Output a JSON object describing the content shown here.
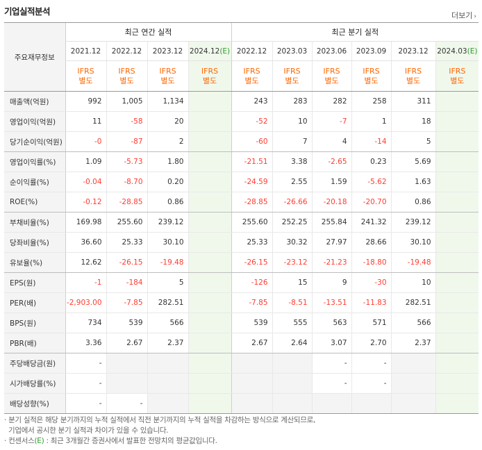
{
  "header": {
    "title": "기업실적분석",
    "more_label": "더보기",
    "more_arrow": "›"
  },
  "table": {
    "label_header": "주요재무정보",
    "group_annual": "최근 연간 실적",
    "group_quarter": "최근 분기 실적",
    "periods": [
      "2021.12",
      "2022.12",
      "2023.12",
      "2024.12",
      "2022.12",
      "2023.03",
      "2023.06",
      "2023.09",
      "2023.12",
      "2024.03"
    ],
    "estimate_suffix": "(E)",
    "ifrs_line1": "IFRS",
    "ifrs_line2": "별도",
    "rows": [
      {
        "label": "매출액(억원)",
        "values": [
          "992",
          "1,005",
          "1,134",
          "",
          "243",
          "283",
          "282",
          "258",
          "311",
          ""
        ]
      },
      {
        "label": "영업이익(억원)",
        "values": [
          "11",
          "-58",
          "20",
          "",
          "-52",
          "10",
          "-7",
          "1",
          "18",
          ""
        ]
      },
      {
        "label": "당기순이익(억원)",
        "values": [
          "-0",
          "-87",
          "2",
          "",
          "-60",
          "7",
          "4",
          "-14",
          "5",
          ""
        ]
      },
      {
        "label": "영업이익률(%)",
        "values": [
          "1.09",
          "-5.73",
          "1.80",
          "",
          "-21.51",
          "3.38",
          "-2.65",
          "0.23",
          "5.69",
          ""
        ]
      },
      {
        "label": "순이익률(%)",
        "values": [
          "-0.04",
          "-8.70",
          "0.20",
          "",
          "-24.59",
          "2.55",
          "1.59",
          "-5.62",
          "1.63",
          ""
        ]
      },
      {
        "label": "ROE(%)",
        "values": [
          "-0.12",
          "-28.85",
          "0.86",
          "",
          "-28.85",
          "-26.66",
          "-20.18",
          "-20.70",
          "0.86",
          ""
        ]
      },
      {
        "label": "부채비율(%)",
        "values": [
          "169.98",
          "255.60",
          "239.12",
          "",
          "255.60",
          "252.25",
          "255.84",
          "241.32",
          "239.12",
          ""
        ]
      },
      {
        "label": "당좌비율(%)",
        "values": [
          "36.60",
          "25.33",
          "30.10",
          "",
          "25.33",
          "30.32",
          "27.97",
          "28.66",
          "30.10",
          ""
        ]
      },
      {
        "label": "유보율(%)",
        "values": [
          "12.62",
          "-26.15",
          "-19.48",
          "",
          "-26.15",
          "-23.12",
          "-21.23",
          "-18.80",
          "-19.48",
          ""
        ]
      },
      {
        "label": "EPS(원)",
        "values": [
          "-1",
          "-184",
          "5",
          "",
          "-126",
          "15",
          "9",
          "-30",
          "10",
          ""
        ]
      },
      {
        "label": "PER(배)",
        "values": [
          "-2,903.00",
          "-7.85",
          "282.51",
          "",
          "-7.85",
          "-8.51",
          "-13.51",
          "-11.83",
          "282.51",
          ""
        ]
      },
      {
        "label": "BPS(원)",
        "values": [
          "734",
          "539",
          "566",
          "",
          "539",
          "555",
          "563",
          "571",
          "566",
          ""
        ]
      },
      {
        "label": "PBR(배)",
        "values": [
          "3.36",
          "2.67",
          "2.37",
          "",
          "2.67",
          "2.64",
          "3.07",
          "2.70",
          "2.37",
          ""
        ]
      },
      {
        "label": "주당배당금(원)",
        "values": [
          "-",
          "",
          "",
          "",
          "",
          "",
          "-",
          "-",
          "",
          ""
        ]
      },
      {
        "label": "시가배당률(%)",
        "values": [
          "-",
          "",
          "",
          "",
          "",
          "",
          "-",
          "-",
          "",
          ""
        ]
      },
      {
        "label": "배당성향(%)",
        "values": [
          "-",
          "-",
          "",
          "",
          "",
          "",
          "",
          "",
          "",
          ""
        ]
      }
    ]
  },
  "notes": {
    "line1": "· 분기 실적은 해당 분기까지의 누적 실적에서 직전 분기까지의 누적 실적을 차감하는 방식으로 계산되므로,",
    "line2": "  기업에서 공시한 분기 실적과 차이가 있을 수 있습니다.",
    "line3_pre": "· 컨센서스",
    "line3_e": "(E)",
    "line3_post": " : 최근 3개월간 증권사에서 발표한 전망치의 평균값입니다."
  }
}
